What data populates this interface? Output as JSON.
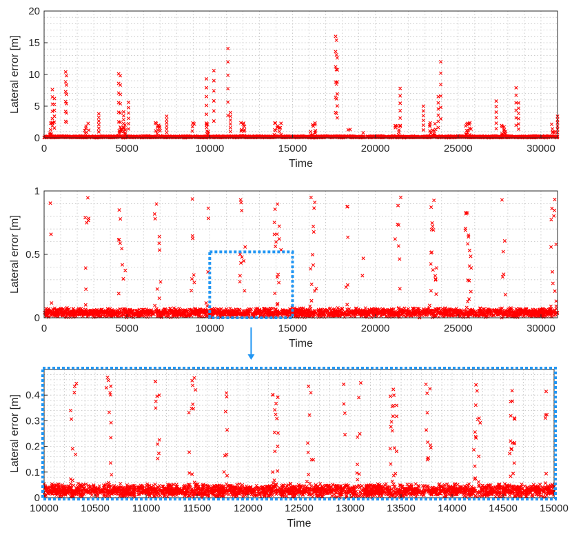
{
  "colors": {
    "marker": "#ff0000",
    "highlight": "#2196f3",
    "axis": "#262626",
    "grid": "#bdbdbd"
  },
  "marker_style": "x",
  "connector": {
    "from_panel": 1,
    "to_panel": 2,
    "icon": "arrow-down-icon"
  },
  "chart_data": [
    {
      "type": "scatter",
      "title": "",
      "xlabel": "Time",
      "ylabel": "Lateral error [m]",
      "xlim": [
        0,
        31000
      ],
      "ylim": [
        0,
        20
      ],
      "xticks": [
        0,
        5000,
        10000,
        15000,
        20000,
        25000,
        30000
      ],
      "yticks": [
        0,
        5,
        10,
        15,
        20
      ],
      "grid": "dotted",
      "series": [
        {
          "values": "dense noise near 0 with spikes",
          "spikes": [
            [
              500,
              7.6
            ],
            [
              620,
              6.2
            ],
            [
              1300,
              10.4
            ],
            [
              1350,
              9.8
            ],
            [
              3300,
              3.8
            ],
            [
              4500,
              10.1
            ],
            [
              4600,
              9.8
            ],
            [
              4800,
              4.1
            ],
            [
              5100,
              5.6
            ],
            [
              7400,
              3.4
            ],
            [
              9800,
              9.3
            ],
            [
              10250,
              10.6
            ],
            [
              11100,
              14.1
            ],
            [
              11250,
              4.0
            ],
            [
              17600,
              16.0
            ],
            [
              17650,
              15.4
            ],
            [
              17700,
              12.6
            ],
            [
              21500,
              7.8
            ],
            [
              22900,
              5.0
            ],
            [
              23800,
              6.5
            ],
            [
              23950,
              12.0
            ],
            [
              27300,
              5.8
            ],
            [
              28500,
              7.9
            ],
            [
              28650,
              5.5
            ],
            [
              31000,
              3.4
            ]
          ]
        }
      ]
    },
    {
      "type": "scatter",
      "title": "",
      "xlabel": "Time",
      "ylabel": "Lateral error [m]",
      "xlim": [
        0,
        31000
      ],
      "ylim": [
        0,
        1
      ],
      "xticks": [
        0,
        5000,
        10000,
        15000,
        20000,
        25000,
        30000
      ],
      "yticks": [
        0,
        0.5,
        1
      ],
      "grid": "dotted",
      "highlight_region": {
        "x": [
          10000,
          15000
        ],
        "y": [
          0,
          0.52
        ]
      },
      "series": [
        {
          "values": "dense noise below 1.0 with tall clusters"
        }
      ]
    },
    {
      "type": "scatter",
      "title": "",
      "xlabel": "Time",
      "ylabel": "Lateral error [m]",
      "xlim": [
        10000,
        15000
      ],
      "ylim": [
        0,
        0.5
      ],
      "xticks": [
        10000,
        10500,
        11000,
        11500,
        12000,
        12500,
        13000,
        13500,
        14000,
        14500,
        15000
      ],
      "yticks": [
        0,
        0.1,
        0.2,
        0.3,
        0.4
      ],
      "grid": "dotted",
      "frame": "dotted-highlight",
      "series": [
        {
          "values": "dense noise, zoom of panel 2 region"
        }
      ]
    }
  ]
}
